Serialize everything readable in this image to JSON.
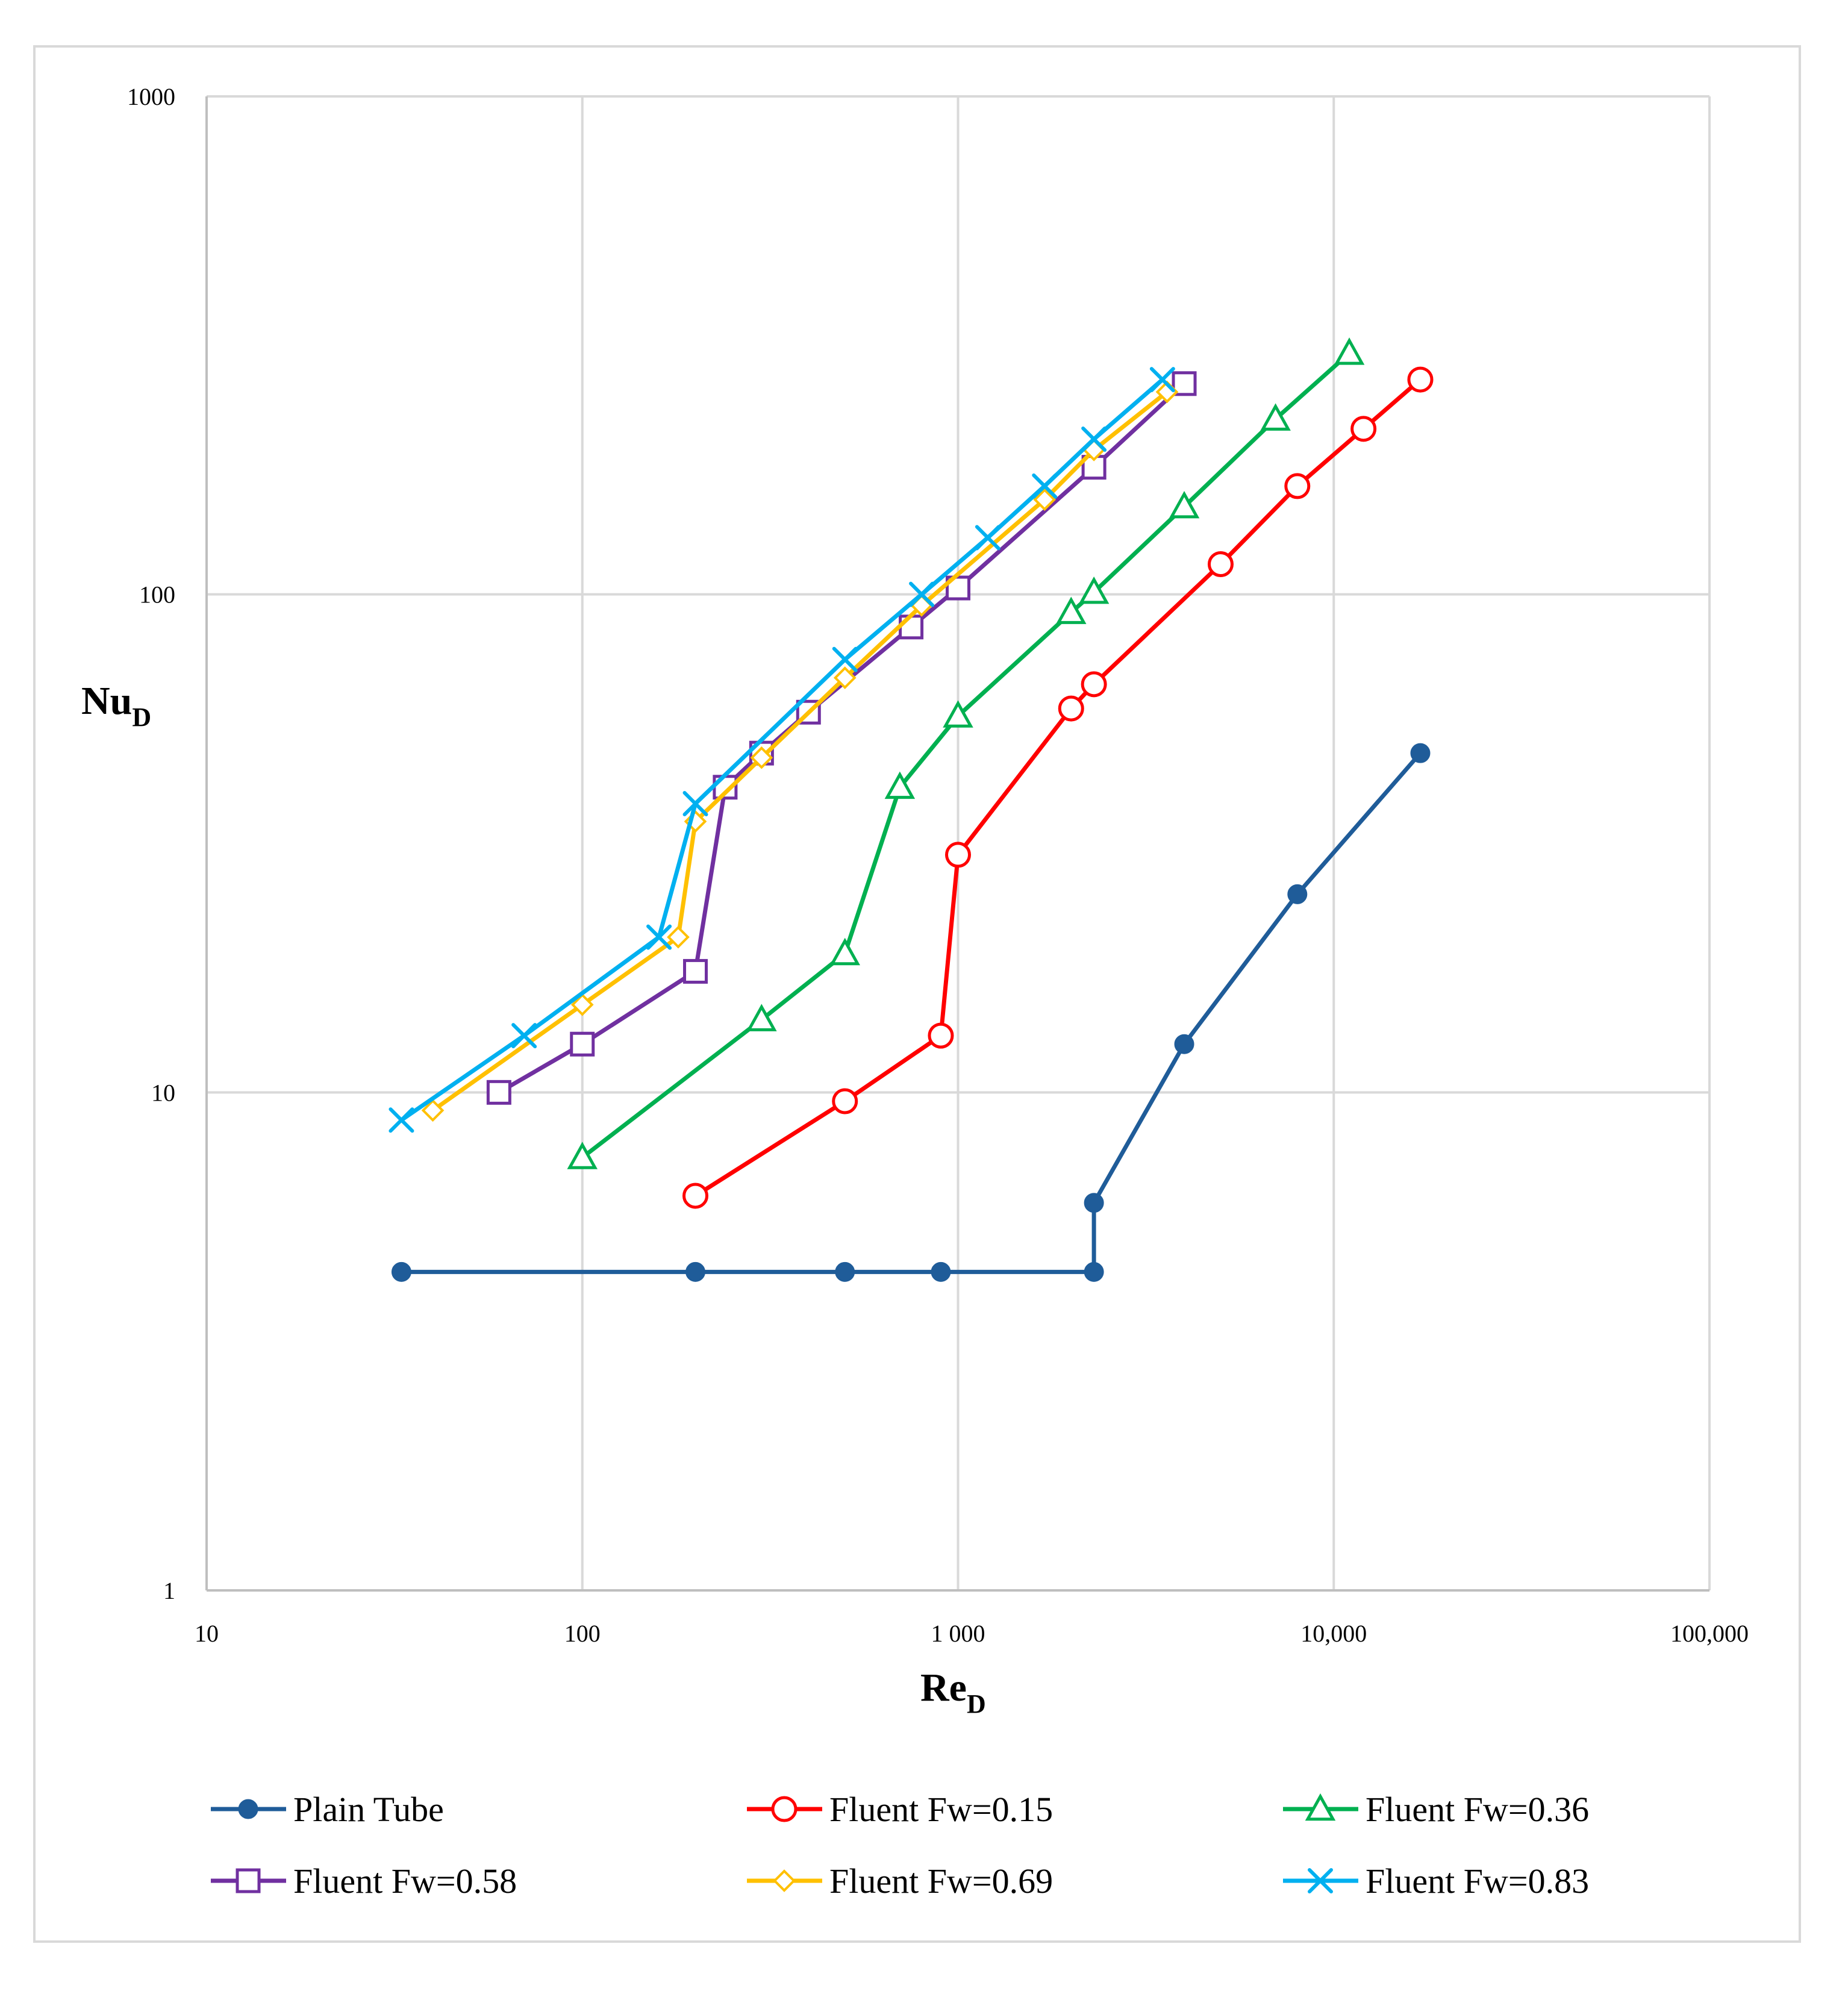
{
  "chart_data": {
    "type": "line",
    "title": "",
    "xlabel": "Re",
    "xlabel_sub": "D",
    "ylabel": "Nu",
    "ylabel_sub": "D",
    "xscale": "log",
    "yscale": "log",
    "xlim": [
      10,
      100000
    ],
    "ylim": [
      1,
      1000
    ],
    "grid": true,
    "legend_position": "bottom",
    "x_ticks": [
      {
        "value": 10,
        "label": "10"
      },
      {
        "value": 100,
        "label": "100"
      },
      {
        "value": 1000,
        "label": "1 000"
      },
      {
        "value": 10000,
        "label": "10,000"
      },
      {
        "value": 100000,
        "label": "100,000"
      }
    ],
    "y_ticks": [
      {
        "value": 1,
        "label": "1"
      },
      {
        "value": 10,
        "label": "10"
      },
      {
        "value": 100,
        "label": "100"
      },
      {
        "value": 1000,
        "label": "1000"
      }
    ],
    "series": [
      {
        "name": "Plain Tube",
        "color": "#1f5c99",
        "marker": "filled-circle",
        "points": [
          [
            33,
            4.36
          ],
          [
            200,
            4.36
          ],
          [
            500,
            4.36
          ],
          [
            900,
            4.36
          ],
          [
            2300,
            4.36
          ],
          [
            2300,
            6.0
          ],
          [
            4000,
            12.5
          ],
          [
            8000,
            25.0
          ],
          [
            17000,
            48.0
          ]
        ]
      },
      {
        "name": "Fluent Fw=0.15",
        "color": "#ff0000",
        "marker": "open-circle",
        "points": [
          [
            200,
            6.2
          ],
          [
            500,
            9.6
          ],
          [
            900,
            13.0
          ],
          [
            1000,
            30.0
          ],
          [
            2000,
            59.0
          ],
          [
            2300,
            66.0
          ],
          [
            5000,
            115.0
          ],
          [
            8000,
            165.0
          ],
          [
            12000,
            215.0
          ],
          [
            17000,
            270.0
          ]
        ]
      },
      {
        "name": "Fluent Fw=0.36",
        "color": "#00b050",
        "marker": "open-triangle",
        "points": [
          [
            100,
            7.4
          ],
          [
            300,
            14.0
          ],
          [
            500,
            19.0
          ],
          [
            700,
            41.0
          ],
          [
            1000,
            57.0
          ],
          [
            2000,
            92.0
          ],
          [
            2300,
            101.0
          ],
          [
            4000,
            150.0
          ],
          [
            7000,
            225.0
          ],
          [
            11000,
            305.0
          ]
        ]
      },
      {
        "name": "Fluent Fw=0.58",
        "color": "#7030a0",
        "marker": "open-square",
        "points": [
          [
            60,
            10.0
          ],
          [
            100,
            12.5
          ],
          [
            200,
            17.5
          ],
          [
            240,
            41.0
          ],
          [
            300,
            48.0
          ],
          [
            400,
            58.0
          ],
          [
            750,
            86.0
          ],
          [
            1000,
            103.0
          ],
          [
            2300,
            180.0
          ],
          [
            4000,
            265.0
          ]
        ]
      },
      {
        "name": "Fluent Fw=0.69",
        "color": "#ffc000",
        "marker": "open-diamond",
        "points": [
          [
            40,
            9.2
          ],
          [
            100,
            15.0
          ],
          [
            180,
            20.5
          ],
          [
            200,
            35.0
          ],
          [
            300,
            47.0
          ],
          [
            500,
            68.0
          ],
          [
            800,
            95.0
          ],
          [
            1700,
            155.0
          ],
          [
            2300,
            195.0
          ],
          [
            3600,
            255.0
          ]
        ]
      },
      {
        "name": "Fluent Fw=0.83",
        "color": "#00b0f0",
        "marker": "x",
        "points": [
          [
            33,
            8.8
          ],
          [
            70,
            13.0
          ],
          [
            160,
            20.5
          ],
          [
            200,
            38.0
          ],
          [
            500,
            74.0
          ],
          [
            800,
            100.0
          ],
          [
            1200,
            130.0
          ],
          [
            1700,
            165.0
          ],
          [
            2300,
            205.0
          ],
          [
            3500,
            270.0
          ]
        ]
      }
    ]
  }
}
